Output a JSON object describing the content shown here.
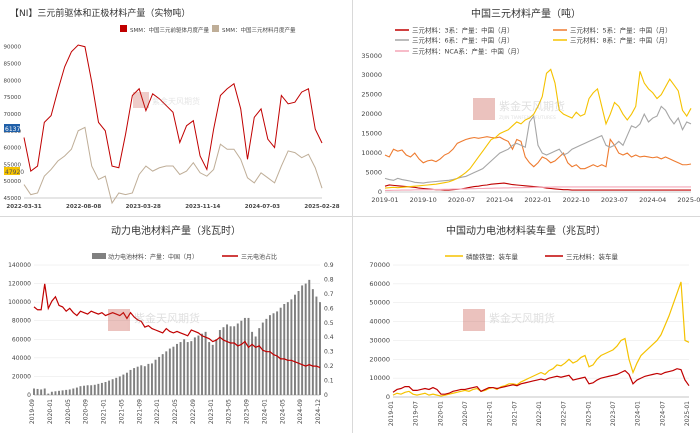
{
  "colors": {
    "red": "#c00000",
    "gold": "#f5c200",
    "orange": "#ee7b30",
    "gray": "#a6a6a6",
    "dark": "#404040",
    "pink": "#f4a6b7",
    "bar": "#808080",
    "purple": "#5b3a8e"
  },
  "watermark": {
    "cn": "紫金天风期货",
    "en": "ZIJIN TIANFENG FUTURES"
  },
  "chart_data": [
    {
      "id": "tl",
      "type": "line",
      "title": "【NI】三元前驱体和正极材料产量（实物吨）",
      "legend": [
        "SMM：中国三元前驱体月度产量",
        "SMM：中国三元材料月度产量"
      ],
      "xlabels": [
        "2022-03-31",
        "2022-08-08",
        "2023-03-28",
        "2023-11-14",
        "2024-07-03",
        "2025-02-28"
      ],
      "ylabels": [
        "90000",
        "85000",
        "80000",
        "75000",
        "70000",
        "65000",
        "60000",
        "55000",
        "50000",
        "45000"
      ],
      "ylim": [
        45000,
        92000
      ],
      "badge_left": "61370",
      "badge_left2": "47920",
      "series": [
        {
          "name": "SMM：中国三元前驱体月度产量",
          "color": "#c00000",
          "values": [
            63000,
            53000,
            54500,
            67500,
            69500,
            77000,
            84000,
            88500,
            90500,
            90000,
            79500,
            67500,
            65000,
            54500,
            54000,
            64000,
            75500,
            77500,
            71000,
            76000,
            74500,
            72500,
            70500,
            61500,
            66500,
            68000,
            57500,
            53500,
            65500,
            75500,
            77500,
            79000,
            71500,
            56500,
            69000,
            71500,
            62500,
            60000,
            75500,
            73000,
            73500,
            76500,
            77500,
            65500,
            61370
          ]
        },
        {
          "name": "SMM：中国三元材料月度产量",
          "color": "#bfae98",
          "values": [
            49000,
            46000,
            46500,
            51500,
            53500,
            56000,
            57500,
            59500,
            65000,
            66000,
            54500,
            50500,
            51500,
            43500,
            46500,
            46000,
            46500,
            52000,
            54500,
            53000,
            54000,
            54500,
            54500,
            52000,
            53000,
            55500,
            52500,
            51500,
            53500,
            61000,
            59500,
            59500,
            56500,
            51000,
            49500,
            52500,
            51000,
            49500,
            54500,
            59000,
            58500,
            57000,
            58000,
            54000,
            47920
          ]
        }
      ]
    },
    {
      "id": "tr",
      "type": "line",
      "title": "中国三元材料产量（吨）",
      "legend": [
        "三元材料：3系：产量：中国（月）",
        "三元材料：5系：产量：中国（月）",
        "三元材料：6系：产量：中国（月）",
        "三元材料：8系：产量：中国（月）",
        "三元材料：NCA系：产量：中国（月）"
      ],
      "xlabels": [
        "2019-01",
        "2019-10",
        "2020-07",
        "2021-04",
        "2022-01",
        "2022-10",
        "2023-07",
        "2024-04",
        "2025-01"
      ],
      "ylabels": [
        "35000",
        "30000",
        "25000",
        "20000",
        "15000",
        "10000",
        "5000",
        "0"
      ],
      "ylim": [
        0,
        37000
      ],
      "series": [
        {
          "name": "三元材料：3系：产量：中国（月）",
          "color": "#c00000",
          "values": [
            1500,
            1800,
            1700,
            1600,
            1500,
            1400,
            1300,
            1200,
            1000,
            900,
            800,
            700,
            600,
            600,
            500,
            500,
            600,
            700,
            800,
            1000,
            1200,
            1400,
            1500,
            1700,
            1800,
            2000,
            2100,
            2200,
            2300,
            2100,
            1900,
            1800,
            1700,
            1600,
            1500,
            1400,
            1300,
            1200,
            1000,
            900,
            800,
            700,
            600,
            600,
            500,
            500,
            500,
            500,
            500,
            500,
            500,
            500,
            500,
            500,
            500,
            500,
            500,
            500,
            500,
            500,
            500,
            500,
            500,
            500,
            500,
            500,
            500,
            500,
            500,
            500,
            500,
            500,
            500
          ]
        },
        {
          "name": "三元材料：5系：产量：中国（月）",
          "color": "#ee7b30",
          "values": [
            9500,
            9000,
            11000,
            10500,
            10800,
            9500,
            9000,
            10000,
            8500,
            7500,
            8000,
            8200,
            7800,
            8500,
            9500,
            10000,
            11000,
            12500,
            13000,
            13500,
            13800,
            14000,
            13800,
            14000,
            14200,
            14000,
            13900,
            14100,
            13500,
            13000,
            11000,
            13500,
            13000,
            9000,
            7500,
            6500,
            7500,
            9000,
            8500,
            7500,
            8000,
            9000,
            10000,
            7500,
            6500,
            7000,
            6000,
            6000,
            6500,
            7000,
            6500,
            7000,
            6500,
            13500,
            12000,
            10000,
            9500,
            10000,
            9000,
            9500,
            9000,
            9200,
            9000,
            8800,
            9000,
            8500,
            9000,
            8500,
            8000,
            7500,
            7000,
            7000,
            7200
          ]
        },
        {
          "name": "三元材料：6系：产量：中国（月）",
          "color": "#a6a6a6",
          "values": [
            3500,
            3200,
            3000,
            3500,
            3200,
            3000,
            2800,
            2500,
            2400,
            2300,
            2500,
            2600,
            2700,
            2800,
            2900,
            3000,
            3200,
            3500,
            3800,
            4000,
            4500,
            5000,
            5500,
            6000,
            7000,
            8000,
            9000,
            10000,
            10500,
            11000,
            12000,
            12500,
            12000,
            11500,
            18000,
            19500,
            12000,
            10000,
            9500,
            10000,
            10500,
            11000,
            9500,
            10000,
            11000,
            11500,
            12000,
            12500,
            13000,
            13500,
            14000,
            14500,
            12000,
            11500,
            12000,
            13000,
            12000,
            14500,
            17000,
            16500,
            17500,
            20000,
            18000,
            19000,
            19500,
            22000,
            21000,
            19000,
            17500,
            19000,
            16000,
            18000,
            17500
          ]
        },
        {
          "name": "三元材料：8系：产量：中国（月）",
          "color": "#f5c200",
          "values": [
            1000,
            1100,
            1200,
            1100,
            1200,
            1300,
            1400,
            1500,
            1600,
            1700,
            1800,
            1900,
            2000,
            2200,
            2400,
            2600,
            3000,
            3500,
            4200,
            5000,
            6000,
            7500,
            9000,
            10500,
            12000,
            13500,
            14000,
            15000,
            15500,
            16000,
            17000,
            18000,
            17500,
            18500,
            19000,
            20000,
            22000,
            24500,
            30500,
            31500,
            28000,
            21000,
            20000,
            19500,
            19000,
            20500,
            19500,
            20000,
            24000,
            25500,
            26500,
            22000,
            17500,
            20000,
            23000,
            22000,
            20000,
            18500,
            20000,
            22000,
            31000,
            28000,
            26500,
            25500,
            24000,
            25000,
            27000,
            29000,
            27500,
            26000,
            21000,
            19500,
            21500
          ]
        },
        {
          "name": "三元材料：NCA系：产量：中国（月）",
          "color": "#f4a6b7",
          "values": [
            400,
            400,
            450,
            450,
            500,
            500,
            500,
            550,
            550,
            600,
            600,
            600,
            650,
            650,
            700,
            700,
            750,
            750,
            800,
            800,
            850,
            850,
            900,
            900,
            950,
            950,
            1000,
            1000,
            1050,
            1050,
            1100,
            1100,
            1100,
            1150,
            1150,
            1200,
            1200,
            1200,
            1250,
            1250,
            1300,
            1300,
            1300,
            1300,
            1300,
            1300,
            1300,
            1300,
            1300,
            1300,
            1300,
            1300,
            1300,
            1300,
            1300,
            1300,
            1300,
            1300,
            1300,
            1300,
            1300,
            1300,
            1300,
            1300,
            1300,
            1300,
            1300,
            1300,
            1300,
            1300,
            1300,
            1300,
            1300
          ]
        }
      ]
    },
    {
      "id": "bl",
      "type": "bar",
      "title": "动力电池材料产量（兆瓦时）",
      "legend": [
        "动力电池材料：产量：中国（月）",
        "三元电池占比"
      ],
      "xlabels": [
        "2019-09",
        "2020-01",
        "2020-05",
        "2020-09",
        "2021-01",
        "2021-05",
        "2021-09",
        "2022-01",
        "2022-05",
        "2022-09",
        "2023-01",
        "2023-05",
        "2023-09",
        "2024-01",
        "2024-05",
        "2024-09",
        "2024-12"
      ],
      "ylabels": [
        "140000",
        "120000",
        "100000",
        "80000",
        "60000",
        "40000",
        "20000",
        "0"
      ],
      "y2labels": [
        "0.9",
        "0.8",
        "0.7",
        "0.6",
        "0.5",
        "0.4",
        "0.3",
        "0.2",
        "0.1",
        "0"
      ],
      "ylim": [
        0,
        140000
      ],
      "y2lim": [
        0,
        0.9
      ],
      "series": [
        {
          "name": "动力电池材料：产量：中国（月）",
          "color": "#808080",
          "values": [
            7000,
            6500,
            6000,
            7000,
            1500,
            3500,
            4000,
            4500,
            5000,
            5500,
            6000,
            7000,
            8000,
            9500,
            10000,
            10500,
            10500,
            11000,
            12000,
            13000,
            14000,
            15500,
            17000,
            18500,
            20000,
            22000,
            24000,
            27000,
            29000,
            30500,
            32000,
            31000,
            33500,
            34000,
            38000,
            41000,
            44000,
            47000,
            50000,
            52000,
            55000,
            57000,
            60000,
            57000,
            58000,
            62000,
            64000,
            66000,
            68000,
            57000,
            54000,
            60000,
            70000,
            73000,
            76000,
            74000,
            74000,
            77000,
            80000,
            83000,
            83000,
            68000,
            63000,
            72000,
            78000,
            82000,
            86000,
            88000,
            90000,
            94000,
            98000,
            100000,
            103000,
            108000,
            112000,
            118000,
            120000,
            124000,
            114000,
            106000,
            100000
          ]
        },
        {
          "name": "三元电池占比",
          "color": "#c00000",
          "values": [
            0.61,
            0.59,
            0.59,
            0.77,
            0.6,
            0.65,
            0.68,
            0.62,
            0.61,
            0.58,
            0.6,
            0.57,
            0.55,
            0.58,
            0.57,
            0.56,
            0.58,
            0.57,
            0.56,
            0.57,
            0.55,
            0.56,
            0.57,
            0.56,
            0.55,
            0.57,
            0.53,
            0.57,
            0.54,
            0.52,
            0.51,
            0.47,
            0.48,
            0.46,
            0.45,
            0.44,
            0.43,
            0.46,
            0.44,
            0.43,
            0.44,
            0.43,
            0.42,
            0.41,
            0.45,
            0.44,
            0.43,
            0.41,
            0.4,
            0.39,
            0.37,
            0.38,
            0.4,
            0.38,
            0.37,
            0.36,
            0.36,
            0.34,
            0.35,
            0.37,
            0.33,
            0.35,
            0.33,
            0.34,
            0.31,
            0.3,
            0.3,
            0.28,
            0.27,
            0.25,
            0.25,
            0.24,
            0.24,
            0.23,
            0.22,
            0.21,
            0.2,
            0.21,
            0.2,
            0.2,
            0.19
          ]
        }
      ]
    },
    {
      "id": "br",
      "type": "line",
      "title": "中国动力电池材料装车量（兆瓦时）",
      "legend": [
        "磷酸铁锂：装车量",
        "三元材料：装车量"
      ],
      "xlabels": [
        "2019-01",
        "2019-07",
        "2020-01",
        "2020-07",
        "2021-01",
        "2021-07",
        "2022-01",
        "2022-07",
        "2023-01",
        "2023-07",
        "2024-01",
        "2024-07",
        "2025-01"
      ],
      "ylabels": [
        "70000",
        "60000",
        "50000",
        "40000",
        "30000",
        "20000",
        "10000",
        "0"
      ],
      "ylim": [
        0,
        70000
      ],
      "series": [
        {
          "name": "磷酸铁锂：装车量",
          "color": "#f5c200",
          "values": [
            1000,
            2000,
            1500,
            2500,
            3000,
            1500,
            1000,
            1500,
            2000,
            1000,
            1500,
            1000,
            500,
            1000,
            1500,
            2000,
            2500,
            3000,
            3500,
            3000,
            4000,
            4500,
            3000,
            3500,
            4500,
            5000,
            4000,
            5500,
            6000,
            7000,
            7000,
            6500,
            8000,
            9000,
            10000,
            11000,
            12000,
            13000,
            12000,
            14000,
            15000,
            17000,
            16500,
            18000,
            20000,
            18000,
            19000,
            21000,
            22000,
            16000,
            17000,
            20000,
            22000,
            23000,
            24000,
            25000,
            27000,
            30000,
            31000,
            20000,
            13000,
            18000,
            22000,
            24000,
            26000,
            28000,
            30000,
            33000,
            38000,
            43000,
            49000,
            55000,
            61000,
            30000,
            29000
          ]
        },
        {
          "name": "三元材料：装车量",
          "color": "#c00000",
          "values": [
            2500,
            4000,
            4500,
            5500,
            5500,
            3500,
            3500,
            4000,
            4500,
            4000,
            5000,
            4000,
            1500,
            1500,
            2000,
            3000,
            3500,
            4000,
            4000,
            4500,
            5000,
            5500,
            3000,
            4000,
            5000,
            5000,
            4500,
            5000,
            5500,
            6000,
            6500,
            6000,
            7000,
            7500,
            8000,
            8500,
            9000,
            9500,
            9000,
            10000,
            10500,
            11000,
            10500,
            11000,
            11500,
            9000,
            9500,
            10000,
            10500,
            7000,
            7500,
            9000,
            10000,
            10500,
            11000,
            11500,
            12000,
            13000,
            14000,
            12000,
            7000,
            9000,
            10000,
            11000,
            11500,
            12000,
            12500,
            12000,
            13000,
            13500,
            14000,
            15000,
            14500,
            9000,
            6000
          ]
        }
      ]
    }
  ]
}
